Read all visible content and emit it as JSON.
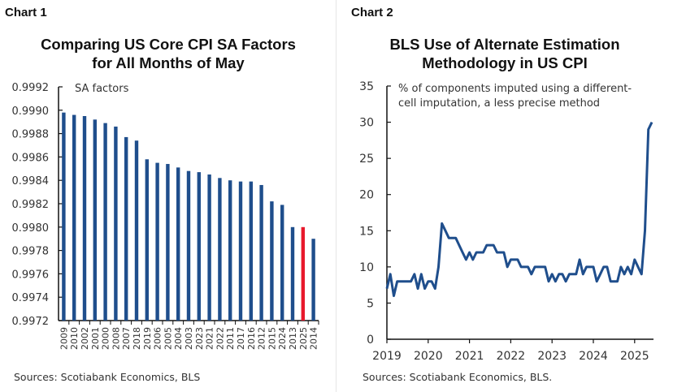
{
  "panels": {
    "left_label": "Chart 1",
    "right_label": "Chart 2"
  },
  "chart_data": [
    {
      "type": "bar",
      "title": "Comparing US Core CPI SA Factors for All Months of May",
      "title_lines": [
        "Comparing US Core CPI SA Factors",
        "for All Months of May"
      ],
      "annotation": "SA factors",
      "xlabel": "",
      "ylabel": "",
      "ylim": [
        0.9972,
        0.9992
      ],
      "yticks": [
        "0.9992",
        "0.9990",
        "0.9988",
        "0.9986",
        "0.9984",
        "0.9982",
        "0.9980",
        "0.9978",
        "0.9976",
        "0.9974",
        "0.9972"
      ],
      "categories": [
        "2009",
        "2010",
        "2002",
        "2001",
        "2000",
        "2008",
        "2007",
        "2018",
        "2019",
        "2006",
        "2005",
        "2004",
        "2003",
        "2023",
        "2021",
        "2022",
        "2011",
        "2017",
        "2016",
        "2012",
        "2015",
        "2024",
        "2013",
        "2025",
        "2014"
      ],
      "values": [
        0.99898,
        0.99896,
        0.99895,
        0.99892,
        0.99889,
        0.99886,
        0.99877,
        0.99874,
        0.99858,
        0.99855,
        0.99854,
        0.99851,
        0.99848,
        0.99847,
        0.99845,
        0.99842,
        0.9984,
        0.99839,
        0.99839,
        0.99836,
        0.99822,
        0.99819,
        0.998,
        0.998,
        0.9979
      ],
      "highlight": "2025",
      "colors": {
        "bar": "#1f4e8c",
        "highlight": "#e8192c",
        "axis": "#111111"
      },
      "grid": false,
      "source": "Sources: Scotiabank Economics, BLS"
    },
    {
      "type": "line",
      "title": "BLS Use of Alternate Estimation Methodology in US CPI",
      "title_lines": [
        "BLS Use of Alternate Estimation",
        "Methodology in US CPI"
      ],
      "annotation_lines": [
        "% of components imputed using a different-",
        "cell imputation, a less precise method"
      ],
      "xlabel": "",
      "ylabel": "",
      "ylim": [
        0,
        35
      ],
      "yticks": [
        "35",
        "30",
        "25",
        "20",
        "15",
        "10",
        "5",
        "0"
      ],
      "xticks": [
        "2019",
        "2020",
        "2021",
        "2022",
        "2023",
        "2024",
        "2025"
      ],
      "x_start": "2019-01",
      "frequency": "monthly",
      "series": [
        {
          "name": "% of components imputed using different-cell imputation",
          "color": "#1f4e8c",
          "values": [
            7,
            9,
            6,
            8,
            8,
            8,
            8,
            8,
            9,
            7,
            9,
            7,
            8,
            8,
            7,
            10,
            16,
            15,
            14,
            14,
            14,
            13,
            12,
            11,
            12,
            11,
            12,
            12,
            12,
            13,
            13,
            13,
            12,
            12,
            12,
            10,
            11,
            11,
            11,
            10,
            10,
            10,
            9,
            10,
            10,
            10,
            10,
            8,
            9,
            8,
            9,
            9,
            8,
            9,
            9,
            9,
            11,
            9,
            10,
            10,
            10,
            8,
            9,
            10,
            10,
            8,
            8,
            8,
            10,
            9,
            10,
            9,
            11,
            10,
            9,
            15,
            29,
            30
          ]
        }
      ],
      "grid": false,
      "source": "Sources: Scotiabank Economics, BLS."
    }
  ]
}
